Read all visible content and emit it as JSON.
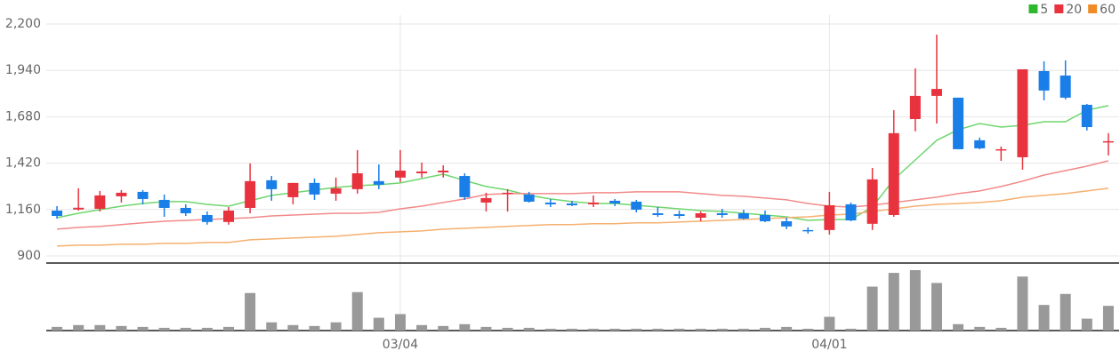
{
  "chart_data": {
    "type": "candlestick",
    "categories": [
      null,
      null,
      null,
      null,
      null,
      null,
      null,
      null,
      null,
      null,
      null,
      null,
      null,
      null,
      null,
      null,
      "03/04",
      null,
      null,
      null,
      null,
      null,
      null,
      null,
      null,
      null,
      null,
      null,
      null,
      null,
      null,
      null,
      null,
      null,
      null,
      null,
      "04/01",
      null,
      null,
      null,
      null,
      null,
      null,
      null,
      null,
      null,
      null,
      null,
      null,
      null
    ],
    "open": [
      1154,
      1160,
      1164,
      1234,
      1259,
      1214,
      1169,
      1129,
      1090,
      1169,
      1324,
      1229,
      1309,
      1249,
      1274,
      1319,
      1339,
      1363,
      1368,
      1348,
      1199,
      1249,
      1244,
      1199,
      1194,
      1189,
      1209,
      1204,
      1139,
      1134,
      1114,
      1139,
      1139,
      1129,
      1094,
      1045,
      1045,
      1189,
      1080,
      1129,
      1667,
      1797,
      1787,
      1548,
      1493,
      1453,
      1936,
      1911,
      1747,
      1538
    ],
    "close": [
      1124,
      1170,
      1239,
      1254,
      1219,
      1169,
      1139,
      1090,
      1154,
      1319,
      1274,
      1309,
      1244,
      1279,
      1363,
      1299,
      1378,
      1373,
      1378,
      1229,
      1224,
      1254,
      1204,
      1189,
      1184,
      1199,
      1194,
      1159,
      1129,
      1124,
      1139,
      1129,
      1109,
      1094,
      1065,
      1040,
      1184,
      1099,
      1329,
      1588,
      1797,
      1836,
      1498,
      1503,
      1498,
      1946,
      1827,
      1787,
      1622,
      1543
    ],
    "high": [
      1179,
      1279,
      1264,
      1269,
      1269,
      1244,
      1189,
      1149,
      1174,
      1418,
      1348,
      1309,
      1334,
      1339,
      1493,
      1413,
      1493,
      1423,
      1408,
      1363,
      1254,
      1274,
      1259,
      1219,
      1209,
      1239,
      1219,
      1214,
      1174,
      1154,
      1149,
      1164,
      1159,
      1154,
      1114,
      1060,
      1259,
      1199,
      1393,
      1717,
      1951,
      2140,
      1787,
      1563,
      1513,
      1946,
      1991,
      1996,
      1752,
      1588
    ],
    "low": [
      1109,
      1154,
      1149,
      1199,
      1189,
      1119,
      1124,
      1075,
      1075,
      1139,
      1209,
      1189,
      1214,
      1209,
      1249,
      1274,
      1314,
      1339,
      1339,
      1214,
      1149,
      1149,
      1199,
      1174,
      1179,
      1174,
      1179,
      1144,
      1119,
      1109,
      1094,
      1114,
      1104,
      1089,
      1050,
      1025,
      1020,
      1094,
      1045,
      1119,
      1598,
      1642,
      1498,
      1498,
      1433,
      1383,
      1772,
      1777,
      1603,
      1463
    ],
    "volume": [
      4,
      6,
      6,
      5,
      4,
      3,
      3,
      3,
      4,
      41,
      9,
      6,
      5,
      9,
      42,
      14,
      18,
      6,
      5,
      7,
      4,
      3,
      3,
      2,
      2,
      2,
      2,
      2,
      2,
      2,
      2,
      2,
      2,
      3,
      4,
      2,
      15,
      2,
      48,
      63,
      66,
      52,
      7,
      4,
      3,
      59,
      28,
      40,
      13,
      27
    ],
    "series": [
      {
        "name": "5",
        "color": "#2db82d",
        "line_color": "#6fd66f",
        "values": [
          1114,
          1139,
          1159,
          1179,
          1194,
          1204,
          1204,
          1189,
          1179,
          1209,
          1239,
          1254,
          1269,
          1284,
          1294,
          1299,
          1309,
          1333,
          1358,
          1323,
          1289,
          1269,
          1239,
          1219,
          1204,
          1194,
          1194,
          1184,
          1174,
          1164,
          1154,
          1149,
          1139,
          1129,
          1119,
          1099,
          1104,
          1104,
          1174,
          1328,
          1438,
          1548,
          1607,
          1642,
          1622,
          1632,
          1652,
          1652,
          1717,
          1742
        ]
      },
      {
        "name": "20",
        "color": "#e8333f",
        "line_color": "#f28a8a",
        "values": [
          1050,
          1060,
          1065,
          1075,
          1085,
          1094,
          1099,
          1104,
          1109,
          1114,
          1124,
          1129,
          1134,
          1139,
          1139,
          1144,
          1164,
          1179,
          1199,
          1219,
          1244,
          1249,
          1249,
          1249,
          1249,
          1254,
          1254,
          1259,
          1259,
          1259,
          1249,
          1239,
          1234,
          1224,
          1214,
          1194,
          1179,
          1174,
          1184,
          1199,
          1214,
          1229,
          1249,
          1264,
          1289,
          1319,
          1353,
          1378,
          1403,
          1433
        ]
      },
      {
        "name": "60",
        "color": "#f08c28",
        "line_color": "#f5b070",
        "values": [
          955,
          960,
          960,
          965,
          965,
          970,
          970,
          975,
          975,
          990,
          995,
          1000,
          1005,
          1010,
          1020,
          1030,
          1035,
          1040,
          1050,
          1055,
          1060,
          1065,
          1070,
          1075,
          1075,
          1080,
          1080,
          1085,
          1085,
          1090,
          1094,
          1099,
          1104,
          1109,
          1114,
          1119,
          1129,
          1134,
          1149,
          1164,
          1179,
          1189,
          1194,
          1199,
          1209,
          1229,
          1239,
          1249,
          1264,
          1279
        ]
      }
    ],
    "ylim": [
      860,
      2200
    ],
    "yticks": [
      900,
      {
        "value": 1160,
        "label": "1,160"
      },
      {
        "value": 1420,
        "label": "1,420"
      },
      {
        "value": 1680,
        "label": "1,680"
      },
      {
        "value": 1940,
        "label": "1,940"
      },
      {
        "value": 2200,
        "label": "2,200"
      }
    ],
    "up_color": "#e8333f",
    "down_color": "#1a7ee8",
    "volume_color": "#999999",
    "grid": true,
    "legend": "top-right"
  }
}
